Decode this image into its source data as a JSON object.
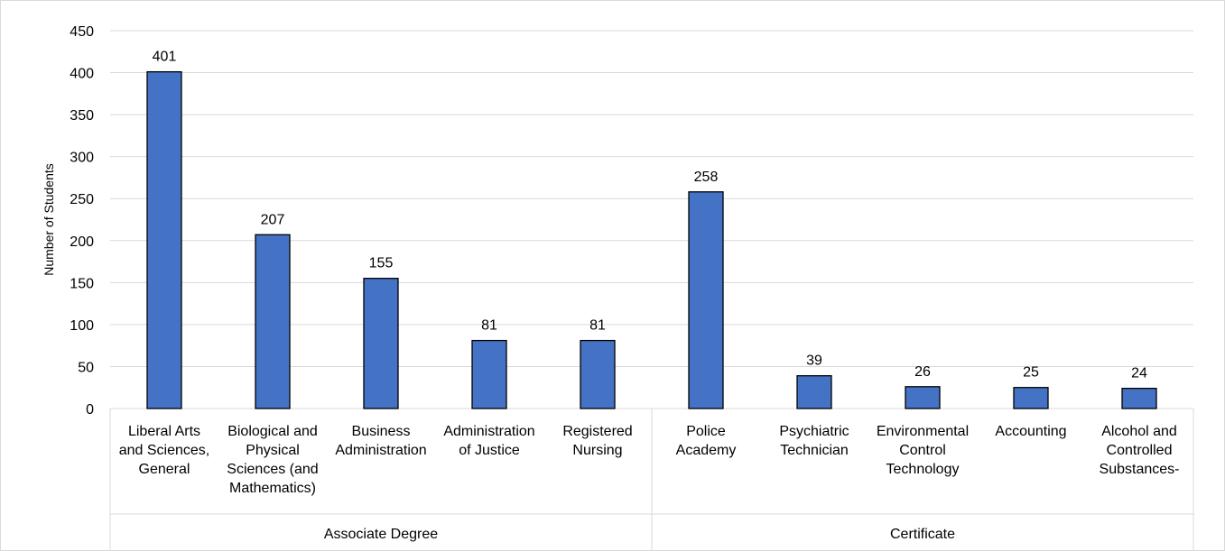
{
  "chart_data": {
    "type": "bar",
    "title": "",
    "ylabel": "Number of Students",
    "xlabel": "",
    "ylim": [
      0,
      450
    ],
    "yticks": [
      0,
      50,
      100,
      150,
      200,
      250,
      300,
      350,
      400,
      450
    ],
    "grid": true,
    "legend": "none",
    "bar_color": "#4472c4",
    "bar_edge_color": "#000000",
    "grid_color": "#d9d9d9",
    "categories": [
      {
        "lines": [
          "Liberal Arts",
          "and Sciences,",
          "General"
        ],
        "group": 0
      },
      {
        "lines": [
          "Biological and",
          "Physical",
          "Sciences (and",
          "Mathematics)"
        ],
        "group": 0
      },
      {
        "lines": [
          "Business",
          "Administration"
        ],
        "group": 0
      },
      {
        "lines": [
          "Administration",
          "of Justice"
        ],
        "group": 0
      },
      {
        "lines": [
          "Registered",
          "Nursing"
        ],
        "group": 0
      },
      {
        "lines": [
          "Police",
          "Academy"
        ],
        "group": 1
      },
      {
        "lines": [
          "Psychiatric",
          "Technician"
        ],
        "group": 1
      },
      {
        "lines": [
          "Environmental",
          "Control",
          "Technology"
        ],
        "group": 1
      },
      {
        "lines": [
          "Accounting"
        ],
        "group": 1
      },
      {
        "lines": [
          "Alcohol and",
          "Controlled",
          "Substances-"
        ],
        "group": 1
      }
    ],
    "values": [
      401,
      207,
      155,
      81,
      81,
      258,
      39,
      26,
      25,
      24
    ],
    "groups": [
      "Associate Degree",
      "Certificate"
    ]
  }
}
